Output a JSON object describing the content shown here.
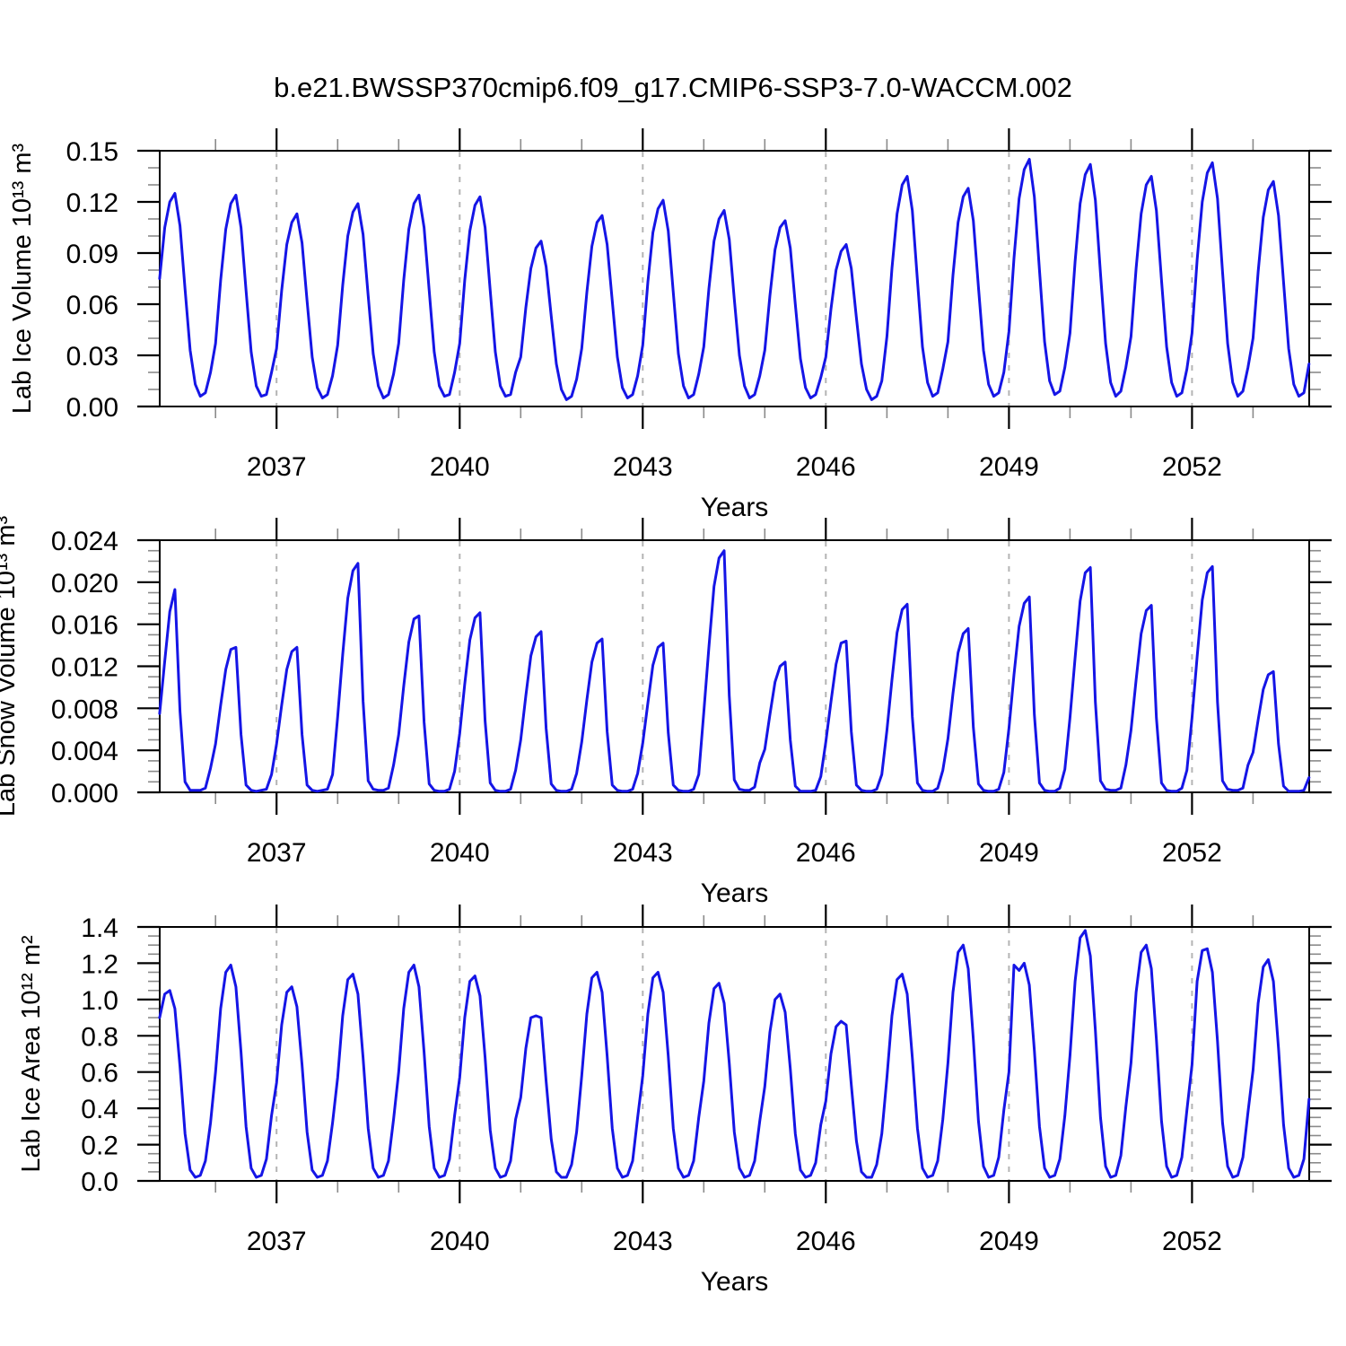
{
  "title": "b.e21.BWSSP370cmip6.f09_g17.CMIP6-SSP3-7.0-WACCM.002",
  "colors": {
    "line": "#1515e6",
    "grid": "#b4b4b4",
    "axis": "#000000",
    "minor_tick": "#8a8a8a",
    "text": "#000000",
    "background": "#ffffff"
  },
  "chart_data": [
    {
      "name": "lab-ice-volume",
      "type": "line",
      "ylabel": "Lab Ice Volume 10¹³ m³",
      "xlabel": "Years",
      "xlim": [
        2035.085,
        2053.92
      ],
      "ylim": [
        0,
        0.15
      ],
      "xticks": [
        2037,
        2040,
        2043,
        2046,
        2049,
        2052
      ],
      "xtick_labels": [
        "2037",
        "2040",
        "2043",
        "2046",
        "2049",
        "2052"
      ],
      "xminor_step": 1,
      "yticks": [
        0,
        0.03,
        0.06,
        0.09,
        0.12,
        0.15
      ],
      "ytick_labels": [
        "0.00",
        "0.03",
        "0.06",
        "0.09",
        "0.12",
        "0.15"
      ],
      "yminor_step": 0.01,
      "grid": "vertical-dashed",
      "series": [
        {
          "name": "lab-ice-volume",
          "color": "#1515e6",
          "start": 2035.08333,
          "step": 0.0833333,
          "values": [
            0.075,
            0.105,
            0.12,
            0.125,
            0.106,
            0.069,
            0.033,
            0.013,
            0.006,
            0.008,
            0.02,
            0.037,
            0.074,
            0.104,
            0.119,
            0.124,
            0.105,
            0.068,
            0.032,
            0.012,
            0.006,
            0.007,
            0.02,
            0.034,
            0.068,
            0.095,
            0.108,
            0.113,
            0.096,
            0.062,
            0.029,
            0.011,
            0.005,
            0.007,
            0.018,
            0.036,
            0.071,
            0.1,
            0.114,
            0.119,
            0.101,
            0.065,
            0.031,
            0.012,
            0.005,
            0.007,
            0.019,
            0.037,
            0.074,
            0.104,
            0.119,
            0.124,
            0.105,
            0.068,
            0.032,
            0.012,
            0.006,
            0.007,
            0.02,
            0.037,
            0.074,
            0.103,
            0.118,
            0.123,
            0.105,
            0.068,
            0.032,
            0.012,
            0.006,
            0.007,
            0.02,
            0.029,
            0.058,
            0.081,
            0.093,
            0.097,
            0.082,
            0.053,
            0.025,
            0.01,
            0.004,
            0.006,
            0.016,
            0.034,
            0.067,
            0.094,
            0.108,
            0.112,
            0.095,
            0.062,
            0.029,
            0.011,
            0.005,
            0.007,
            0.018,
            0.036,
            0.073,
            0.102,
            0.116,
            0.121,
            0.103,
            0.067,
            0.031,
            0.012,
            0.005,
            0.007,
            0.019,
            0.035,
            0.069,
            0.097,
            0.11,
            0.115,
            0.098,
            0.063,
            0.03,
            0.012,
            0.005,
            0.007,
            0.018,
            0.033,
            0.065,
            0.092,
            0.105,
            0.109,
            0.093,
            0.06,
            0.028,
            0.011,
            0.005,
            0.007,
            0.017,
            0.029,
            0.057,
            0.08,
            0.091,
            0.095,
            0.081,
            0.052,
            0.025,
            0.01,
            0.004,
            0.006,
            0.015,
            0.041,
            0.081,
            0.113,
            0.13,
            0.135,
            0.115,
            0.074,
            0.035,
            0.014,
            0.006,
            0.008,
            0.022,
            0.038,
            0.077,
            0.108,
            0.123,
            0.128,
            0.109,
            0.07,
            0.033,
            0.013,
            0.006,
            0.008,
            0.02,
            0.044,
            0.087,
            0.122,
            0.139,
            0.145,
            0.123,
            0.08,
            0.038,
            0.015,
            0.007,
            0.009,
            0.023,
            0.043,
            0.085,
            0.119,
            0.136,
            0.142,
            0.121,
            0.078,
            0.037,
            0.014,
            0.006,
            0.009,
            0.023,
            0.041,
            0.081,
            0.113,
            0.13,
            0.135,
            0.115,
            0.074,
            0.035,
            0.014,
            0.006,
            0.008,
            0.022,
            0.043,
            0.086,
            0.12,
            0.137,
            0.143,
            0.122,
            0.079,
            0.037,
            0.014,
            0.006,
            0.009,
            0.023,
            0.04,
            0.079,
            0.111,
            0.127,
            0.132,
            0.112,
            0.073,
            0.034,
            0.013,
            0.006,
            0.008,
            0.025
          ]
        }
      ]
    },
    {
      "name": "lab-snow-volume",
      "type": "line",
      "ylabel": "Lab Snow Volume 10¹³ m³",
      "xlabel": "Years",
      "xlim": [
        2035.085,
        2053.92
      ],
      "ylim": [
        0,
        0.024
      ],
      "xticks": [
        2037,
        2040,
        2043,
        2046,
        2049,
        2052
      ],
      "xtick_labels": [
        "2037",
        "2040",
        "2043",
        "2046",
        "2049",
        "2052"
      ],
      "xminor_step": 1,
      "yticks": [
        0,
        0.004,
        0.008,
        0.012,
        0.016,
        0.02,
        0.024
      ],
      "ytick_labels": [
        "0.000",
        "0.004",
        "0.008",
        "0.012",
        "0.016",
        "0.020",
        "0.024"
      ],
      "yminor_step": 0.001,
      "grid": "vertical-dashed",
      "series": [
        {
          "name": "lab-snow-volume",
          "color": "#1515e6",
          "start": 2035.08333,
          "step": 0.0833333,
          "values": [
            0.0075,
            0.0125,
            0.0172,
            0.0193,
            0.0077,
            0.001,
            0.0002,
            0.0002,
            0.0002,
            0.0004,
            0.0023,
            0.0046,
            0.0083,
            0.0117,
            0.0136,
            0.0138,
            0.0055,
            0.0007,
            0.0002,
            0.0001,
            0.0002,
            0.0003,
            0.0017,
            0.0046,
            0.0083,
            0.0117,
            0.0134,
            0.0138,
            0.0055,
            0.0007,
            0.0002,
            0.0001,
            0.0002,
            0.0003,
            0.0017,
            0.0072,
            0.0131,
            0.0185,
            0.0211,
            0.0218,
            0.0087,
            0.0011,
            0.0003,
            0.0002,
            0.0002,
            0.0004,
            0.0026,
            0.0055,
            0.0101,
            0.0143,
            0.0165,
            0.0168,
            0.0067,
            0.0008,
            0.0002,
            0.0001,
            0.0001,
            0.0003,
            0.002,
            0.0056,
            0.0103,
            0.0145,
            0.0166,
            0.0171,
            0.0068,
            0.0009,
            0.0002,
            0.0001,
            0.0001,
            0.0003,
            0.0021,
            0.005,
            0.0092,
            0.013,
            0.0148,
            0.0153,
            0.0061,
            0.0008,
            0.0002,
            0.0001,
            0.0001,
            0.0003,
            0.0018,
            0.0048,
            0.0088,
            0.0124,
            0.0142,
            0.0146,
            0.0058,
            0.0007,
            0.0002,
            0.0001,
            0.0001,
            0.0003,
            0.0018,
            0.0047,
            0.0085,
            0.0121,
            0.0138,
            0.0142,
            0.0057,
            0.0007,
            0.0002,
            0.0001,
            0.0001,
            0.0003,
            0.0017,
            0.0076,
            0.0138,
            0.0196,
            0.0223,
            0.023,
            0.0092,
            0.0012,
            0.0003,
            0.0002,
            0.0002,
            0.0005,
            0.0028,
            0.0041,
            0.0074,
            0.0105,
            0.012,
            0.0124,
            0.005,
            0.0006,
            0.0001,
            0.0001,
            0.0001,
            0.0002,
            0.0015,
            0.0048,
            0.0086,
            0.0122,
            0.0142,
            0.0144,
            0.0058,
            0.0007,
            0.0002,
            0.0001,
            0.0001,
            0.0003,
            0.0017,
            0.0059,
            0.0107,
            0.0152,
            0.0174,
            0.0179,
            0.0072,
            0.0009,
            0.0002,
            0.0001,
            0.0001,
            0.0004,
            0.0021,
            0.0051,
            0.0094,
            0.0133,
            0.0151,
            0.0156,
            0.0062,
            0.0008,
            0.0002,
            0.0001,
            0.0001,
            0.0003,
            0.0019,
            0.0061,
            0.0112,
            0.0158,
            0.018,
            0.0186,
            0.0074,
            0.0009,
            0.0002,
            0.0001,
            0.0001,
            0.0004,
            0.0022,
            0.0071,
            0.0128,
            0.0182,
            0.0209,
            0.0214,
            0.0086,
            0.0011,
            0.0003,
            0.0002,
            0.0002,
            0.0004,
            0.0026,
            0.0059,
            0.0107,
            0.0151,
            0.0173,
            0.0178,
            0.0071,
            0.0009,
            0.0002,
            0.0001,
            0.0001,
            0.0004,
            0.0021,
            0.0071,
            0.0129,
            0.0183,
            0.0209,
            0.0215,
            0.0086,
            0.0011,
            0.0003,
            0.0002,
            0.0002,
            0.0004,
            0.0026,
            0.0038,
            0.0069,
            0.0098,
            0.0112,
            0.0115,
            0.0046,
            0.0006,
            0.0001,
            0.0001,
            0.0001,
            0.0002,
            0.0014
          ]
        }
      ]
    },
    {
      "name": "lab-ice-area",
      "type": "line",
      "ylabel": "Lab Ice Area 10¹² m²",
      "xlabel": "Years",
      "xlim": [
        2035.085,
        2053.92
      ],
      "ylim": [
        0,
        1.4
      ],
      "xticks": [
        2037,
        2040,
        2043,
        2046,
        2049,
        2052
      ],
      "xtick_labels": [
        "2037",
        "2040",
        "2043",
        "2046",
        "2049",
        "2052"
      ],
      "xminor_step": 1,
      "yticks": [
        0,
        0.2,
        0.4,
        0.6,
        0.8,
        1.0,
        1.2,
        1.4
      ],
      "ytick_labels": [
        "0.0",
        "0.2",
        "0.4",
        "0.6",
        "0.8",
        "1.0",
        "1.2",
        "1.4"
      ],
      "yminor_step": 0.05,
      "grid": "vertical-dashed",
      "series": [
        {
          "name": "lab-ice-area",
          "color": "#1515e6",
          "start": 2035.08333,
          "step": 0.0833333,
          "values": [
            0.9,
            1.03,
            1.05,
            0.95,
            0.63,
            0.26,
            0.06,
            0.02,
            0.03,
            0.11,
            0.32,
            0.6,
            0.95,
            1.15,
            1.19,
            1.07,
            0.71,
            0.3,
            0.07,
            0.02,
            0.03,
            0.12,
            0.36,
            0.54,
            0.86,
            1.04,
            1.07,
            0.96,
            0.64,
            0.27,
            0.06,
            0.02,
            0.03,
            0.11,
            0.32,
            0.57,
            0.91,
            1.11,
            1.14,
            1.03,
            0.68,
            0.29,
            0.07,
            0.02,
            0.03,
            0.11,
            0.34,
            0.6,
            0.95,
            1.15,
            1.19,
            1.07,
            0.71,
            0.3,
            0.07,
            0.02,
            0.03,
            0.12,
            0.36,
            0.57,
            0.9,
            1.1,
            1.13,
            1.02,
            0.68,
            0.28,
            0.07,
            0.02,
            0.03,
            0.11,
            0.34,
            0.46,
            0.73,
            0.9,
            0.91,
            0.9,
            0.55,
            0.23,
            0.05,
            0.02,
            0.02,
            0.09,
            0.27,
            0.58,
            0.92,
            1.12,
            1.15,
            1.04,
            0.69,
            0.29,
            0.07,
            0.02,
            0.03,
            0.11,
            0.35,
            0.58,
            0.92,
            1.12,
            1.15,
            1.04,
            0.69,
            0.29,
            0.07,
            0.02,
            0.03,
            0.11,
            0.35,
            0.55,
            0.87,
            1.06,
            1.09,
            0.98,
            0.65,
            0.27,
            0.07,
            0.02,
            0.03,
            0.11,
            0.33,
            0.52,
            0.82,
            1.0,
            1.03,
            0.93,
            0.62,
            0.26,
            0.06,
            0.02,
            0.03,
            0.1,
            0.31,
            0.44,
            0.7,
            0.85,
            0.88,
            0.86,
            0.53,
            0.22,
            0.05,
            0.02,
            0.02,
            0.09,
            0.26,
            0.57,
            0.91,
            1.11,
            1.14,
            1.03,
            0.68,
            0.29,
            0.07,
            0.02,
            0.03,
            0.11,
            0.34,
            0.65,
            1.04,
            1.26,
            1.3,
            1.17,
            0.78,
            0.33,
            0.08,
            0.02,
            0.03,
            0.13,
            0.39,
            0.6,
            1.19,
            1.16,
            1.2,
            1.08,
            0.72,
            0.3,
            0.07,
            0.02,
            0.03,
            0.12,
            0.36,
            0.69,
            1.1,
            1.34,
            1.38,
            1.24,
            0.83,
            0.35,
            0.08,
            0.02,
            0.03,
            0.14,
            0.41,
            0.65,
            1.04,
            1.26,
            1.3,
            1.17,
            0.78,
            0.33,
            0.08,
            0.02,
            0.03,
            0.13,
            0.39,
            0.64,
            1.1,
            1.27,
            1.28,
            1.15,
            0.77,
            0.32,
            0.08,
            0.02,
            0.03,
            0.13,
            0.38,
            0.61,
            0.98,
            1.18,
            1.22,
            1.1,
            0.73,
            0.31,
            0.07,
            0.02,
            0.03,
            0.12,
            0.45
          ]
        }
      ]
    }
  ]
}
